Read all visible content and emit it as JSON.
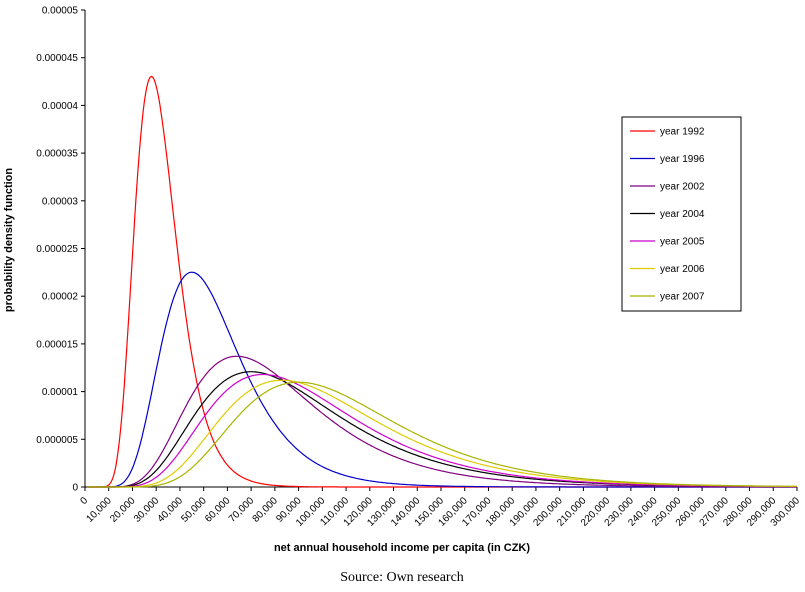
{
  "chart": {
    "caption": "Source: Own research"
  },
  "chart_data": {
    "type": "line",
    "title": "",
    "xlabel": "net annual household income per capita (in CZK)",
    "ylabel": "probability density function",
    "xlim": [
      0,
      300000
    ],
    "ylim": [
      0,
      5e-05
    ],
    "grid": false,
    "legend_position": "right",
    "x_tick_step": 10000,
    "y_tick_step": 5e-06,
    "x_tick_labels": [
      "0",
      "10,000",
      "20,000",
      "30,000",
      "40,000",
      "50,000",
      "60,000",
      "70,000",
      "80,000",
      "90,000",
      "100,000",
      "110,000",
      "120,000",
      "130,000",
      "140,000",
      "150,000",
      "160,000",
      "170,000",
      "180,000",
      "190,000",
      "200,000",
      "210,000",
      "220,000",
      "230,000",
      "240,000",
      "250,000",
      "260,000",
      "270,000",
      "280,000",
      "290,000",
      "300,000"
    ],
    "y_tick_labels": [
      "0",
      "0.000005",
      "0.00001",
      "0.000015",
      "0.00002",
      "0.000025",
      "0.00003",
      "0.000035",
      "0.00004",
      "0.000045",
      "0.00005"
    ],
    "series": [
      {
        "name": "year 1992",
        "color": "#ff0000",
        "distribution": "lognormal",
        "mu": 10.3392,
        "sigma": 0.315,
        "mode": 28000,
        "peak_density": 4.3e-05
      },
      {
        "name": "year 1996",
        "color": "#0000cc",
        "distribution": "lognormal",
        "mu": 10.8498,
        "sigma": 0.368,
        "mode": 45000,
        "peak_density": 2.25e-05
      },
      {
        "name": "year 2002",
        "color": "#800080",
        "distribution": "lognormal",
        "mu": 11.2405,
        "sigma": 0.417,
        "mode": 64000,
        "peak_density": 1.37e-05
      },
      {
        "name": "year 2004",
        "color": "#000000",
        "distribution": "lognormal",
        "mu": 11.3412,
        "sigma": 0.43,
        "mode": 70000,
        "peak_density": 1.21e-05
      },
      {
        "name": "year 2005",
        "color": "#cc00cc",
        "distribution": "lognormal",
        "mu": 11.3966,
        "sigma": 0.414,
        "mode": 75000,
        "peak_density": 1.18e-05
      },
      {
        "name": "year 2006",
        "color": "#ddcc00",
        "distribution": "lognormal",
        "mu": 11.4842,
        "sigma": 0.397,
        "mode": 83000,
        "peak_density": 1.12e-05
      },
      {
        "name": "year 2007",
        "color": "#a8b400",
        "distribution": "lognormal",
        "mu": 11.549,
        "sigma": 0.376,
        "mode": 90000,
        "peak_density": 1.1e-05
      }
    ]
  }
}
